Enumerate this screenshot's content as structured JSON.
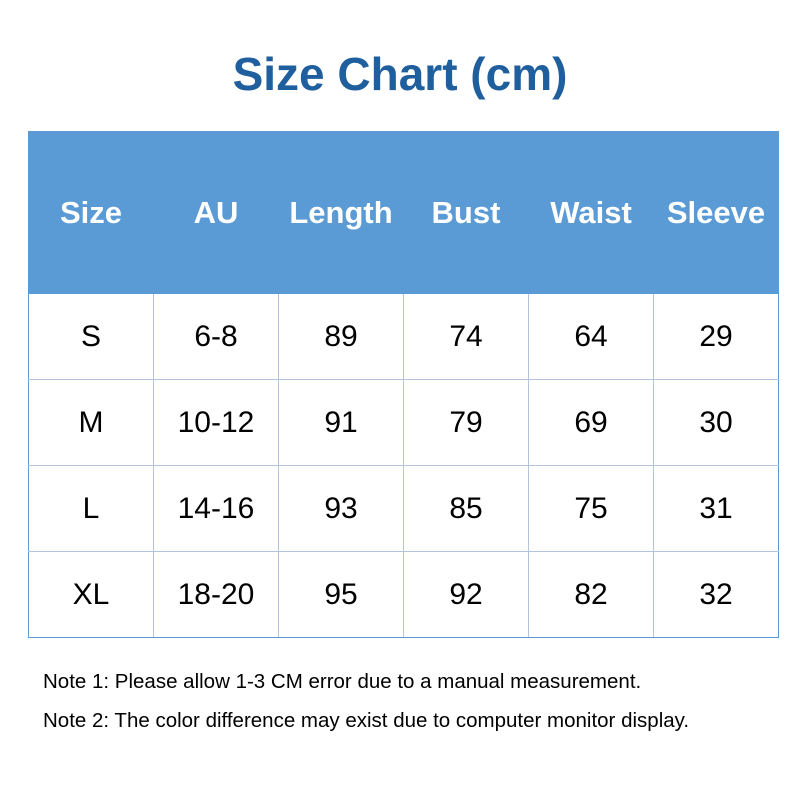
{
  "title": "Size Chart (cm)",
  "colors": {
    "title": "#1f5f9e",
    "header_bg": "#5b9bd5",
    "header_text": "#ffffff"
  },
  "table": {
    "headers": [
      "Size",
      "AU",
      "Length",
      "Bust",
      "Waist",
      "Sleeve"
    ],
    "rows": [
      [
        "S",
        "6-8",
        "89",
        "74",
        "64",
        "29"
      ],
      [
        "M",
        "10-12",
        "91",
        "79",
        "69",
        "30"
      ],
      [
        "L",
        "14-16",
        "93",
        "85",
        "75",
        "31"
      ],
      [
        "XL",
        "18-20",
        "95",
        "92",
        "82",
        "32"
      ]
    ]
  },
  "notes": [
    "Note 1: Please allow 1-3 CM error due to a manual measurement.",
    "Note 2: The color difference may exist due to computer monitor display."
  ]
}
